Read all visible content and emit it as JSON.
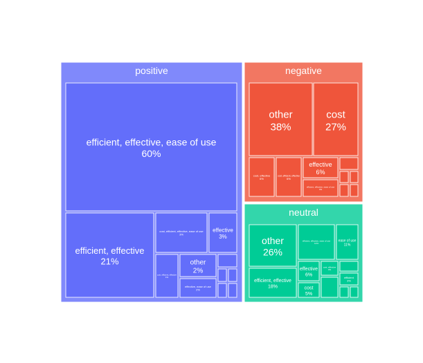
{
  "chart_data": {
    "type": "treemap",
    "groups": [
      {
        "name": "positive",
        "color": "#636EFA",
        "header_color": "#8089FB",
        "items": [
          {
            "label": "efficient, effective, ease of use",
            "pct": "60%"
          },
          {
            "label": "efficient, effective",
            "pct": "21%"
          },
          {
            "label": "cost, efficient, effective, ease of use",
            "pct": "3%"
          },
          {
            "label": "effective",
            "pct": "3%"
          },
          {
            "label": "other",
            "pct": "2%"
          },
          {
            "label": "effective, ease of use",
            "pct": "2%"
          },
          {
            "label": "cost, efficient, effective",
            "pct": "1%"
          },
          {
            "label": "",
            "pct": ""
          },
          {
            "label": "",
            "pct": ""
          },
          {
            "label": "",
            "pct": ""
          },
          {
            "label": "",
            "pct": ""
          },
          {
            "label": "",
            "pct": ""
          },
          {
            "label": "",
            "pct": ""
          }
        ]
      },
      {
        "name": "negative",
        "color": "#EF553B",
        "header_color": "#F27762",
        "items": [
          {
            "label": "other",
            "pct": "38%"
          },
          {
            "label": "cost",
            "pct": "27%"
          },
          {
            "label": "cost, effective",
            "pct": "6%"
          },
          {
            "label": "cost, efficient, effective",
            "pct": "6%"
          },
          {
            "label": "effective",
            "pct": "6%"
          },
          {
            "label": "efficient, effective, ease of use",
            "pct": "3%"
          },
          {
            "label": "",
            "pct": ""
          },
          {
            "label": "",
            "pct": ""
          },
          {
            "label": "",
            "pct": ""
          },
          {
            "label": "",
            "pct": ""
          },
          {
            "label": "",
            "pct": ""
          },
          {
            "label": "",
            "pct": ""
          }
        ]
      },
      {
        "name": "neutral",
        "color": "#00CC96",
        "header_color": "#33D6AB",
        "items": [
          {
            "label": "other",
            "pct": "26%"
          },
          {
            "label": "efficient, effective, ease of use",
            "pct": "12%"
          },
          {
            "label": "ease of use",
            "pct": "11%"
          },
          {
            "label": "efficient, effective",
            "pct": "18%"
          },
          {
            "label": "effective",
            "pct": "6%"
          },
          {
            "label": "cost, effective",
            "pct": "3%"
          },
          {
            "label": "",
            "pct": ""
          },
          {
            "label": "efficient",
            "pct": "3%"
          },
          {
            "label": "cost",
            "pct": "5%"
          },
          {
            "label": "",
            "pct": ""
          },
          {
            "label": "",
            "pct": ""
          },
          {
            "label": "",
            "pct": ""
          }
        ]
      }
    ]
  }
}
